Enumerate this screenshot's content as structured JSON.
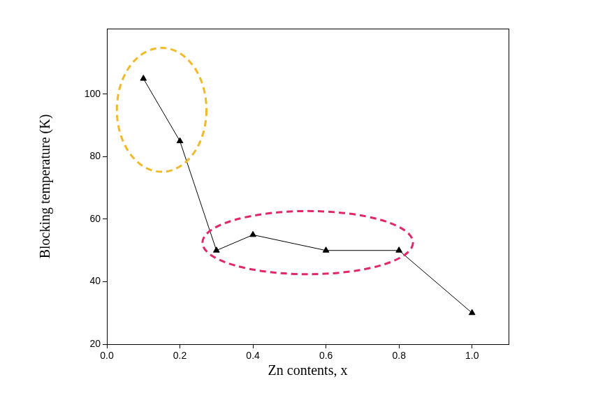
{
  "chart_data": {
    "type": "line",
    "x_label": "Zn contents, x",
    "y_label": "Blocking temperature (K)",
    "x": [
      0.1,
      0.2,
      0.3,
      0.4,
      0.6,
      0.8,
      1.0
    ],
    "values": [
      105,
      85,
      50,
      55,
      50,
      50,
      30
    ],
    "color": "#000000",
    "marker": "triangle",
    "xlim": [
      0,
      1.1
    ],
    "xticks": [
      {
        "value": 0,
        "label": "0.0"
      },
      0.2,
      0.4,
      0.6,
      0.8,
      {
        "value": 1,
        "label": "1.0"
      }
    ],
    "ylim": [
      20,
      121
    ],
    "yticks": [
      20,
      40,
      60,
      80,
      100
    ],
    "grid": false
  }
}
